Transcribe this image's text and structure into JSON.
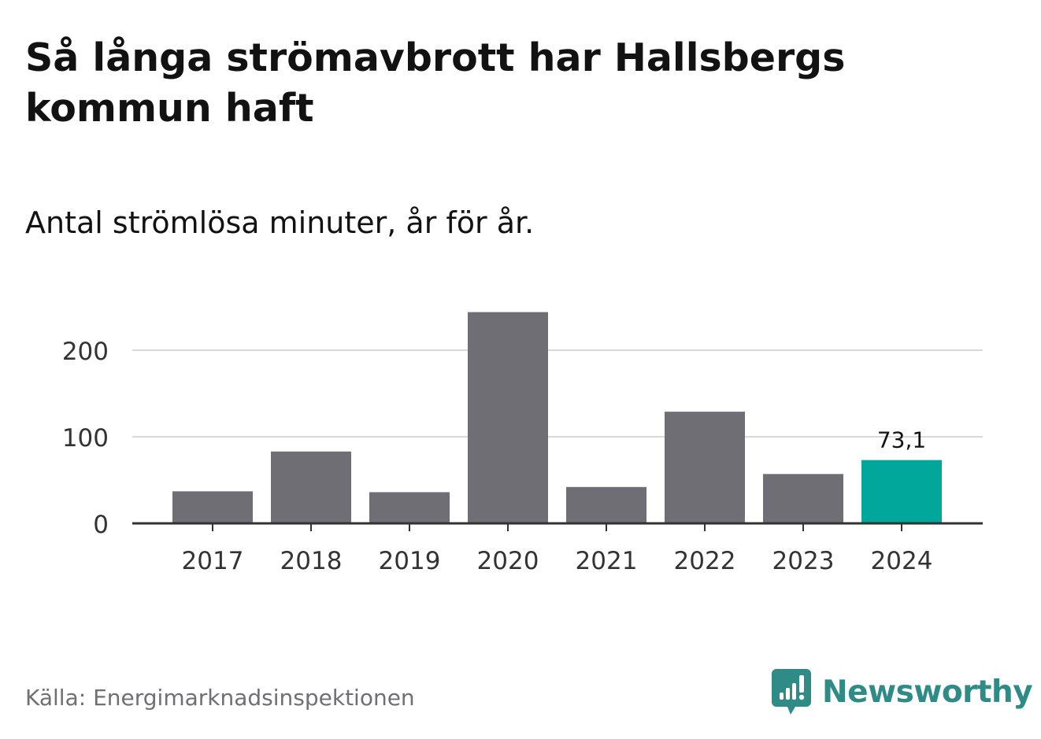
{
  "title": "Så långa strömavbrott har Hallsbergs kommun haft",
  "subtitle": "Antal strömlösa minuter, år för år.",
  "source": "Källa: Energimarknadsinspektionen",
  "brand": {
    "name": "Newsworthy",
    "icon": "newsworthy-logo-icon",
    "color": "#2f8b86"
  },
  "colors": {
    "bar": "#6f6e74",
    "highlight": "#00a79a",
    "grid": "#d9d9d9",
    "axis": "#333333",
    "text": "#121212"
  },
  "chart_data": {
    "type": "bar",
    "categories": [
      "2017",
      "2018",
      "2019",
      "2020",
      "2021",
      "2022",
      "2023",
      "2024"
    ],
    "values": [
      37,
      83,
      36,
      244,
      42,
      129,
      57,
      73.1
    ],
    "highlight_index": 7,
    "data_labels": [
      {
        "index": 7,
        "text": "73,1"
      }
    ],
    "yticks": [
      0,
      100,
      200
    ],
    "ylim": [
      0,
      250
    ],
    "grid": true
  }
}
